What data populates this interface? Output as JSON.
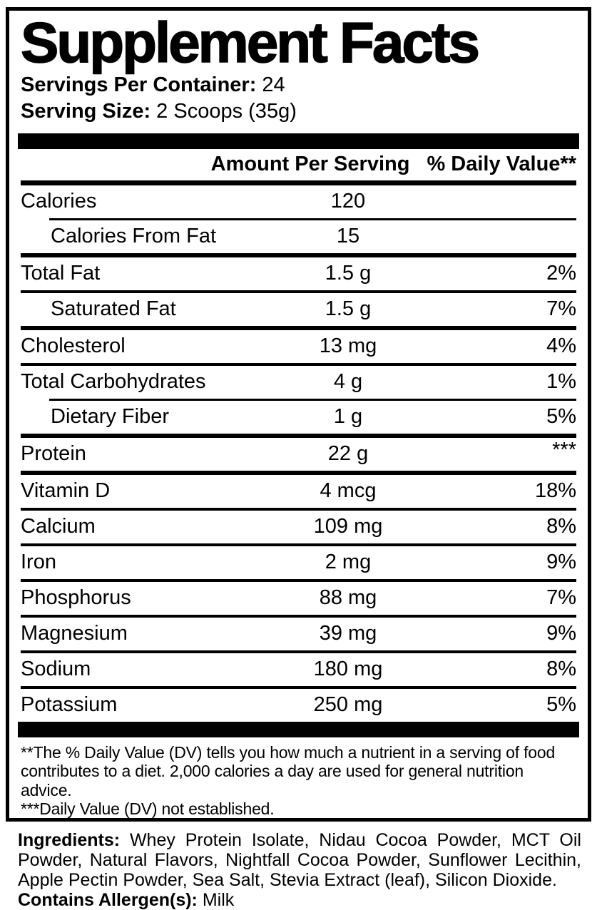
{
  "title": "Supplement Facts",
  "serving_info": {
    "servings_per_container_label": "Servings Per Container:",
    "servings_per_container_value": " 24",
    "serving_size_label": "Serving Size:",
    "serving_size_value": " 2 Scoops (35g)"
  },
  "table": {
    "header": {
      "amount": "Amount Per Serving",
      "daily_value": "% Daily Value**"
    },
    "rows": [
      {
        "name": "Calories",
        "amount": "120",
        "dv": ""
      },
      {
        "name": "Calories From Fat",
        "amount": "15",
        "dv": ""
      },
      {
        "name": "Total Fat",
        "amount": "1.5 g",
        "dv": "2%"
      },
      {
        "name": "Saturated Fat",
        "amount": "1.5 g",
        "dv": "7%"
      },
      {
        "name": "Cholesterol",
        "amount": "13 mg",
        "dv": "4%"
      },
      {
        "name": "Total Carbohydrates",
        "amount": "4 g",
        "dv": "1%"
      },
      {
        "name": "Dietary Fiber",
        "amount": "1 g",
        "dv": "5%"
      },
      {
        "name": "Protein",
        "amount": "22 g",
        "dv": "***"
      },
      {
        "name": "Vitamin D",
        "amount": "4 mcg",
        "dv": "18%"
      },
      {
        "name": "Calcium",
        "amount": "109 mg",
        "dv": "8%"
      },
      {
        "name": "Iron",
        "amount": "2 mg",
        "dv": "9%"
      },
      {
        "name": "Phosphorus",
        "amount": "88 mg",
        "dv": "7%"
      },
      {
        "name": "Magnesium",
        "amount": "39 mg",
        "dv": "9%"
      },
      {
        "name": "Sodium",
        "amount": "180 mg",
        "dv": "8%"
      },
      {
        "name": "Potassium",
        "amount": "250 mg",
        "dv": "5%"
      }
    ]
  },
  "footnotes": {
    "daily_value_note": "**The % Daily Value (DV) tells you how much a nutrient in a serving of food contributes to a diet. 2,000 calories a day are used for general nutrition advice.",
    "not_established_note": "***Daily Value (DV) not established."
  },
  "ingredients": {
    "label": "Ingredients:",
    "list": " Whey Protein Isolate, Nidau Cocoa Powder, MCT Oil Powder, Natural Flavors, Nightfall Cocoa Powder, Sunflower Lecithin, Apple Pectin Powder, Sea Salt, Stevia Extract (leaf), Silicon Dioxide.",
    "allergen_label": "Contains Allergen(s):",
    "allergen_value": " Milk"
  },
  "colors": {
    "text": "#000000",
    "background": "#ffffff"
  }
}
